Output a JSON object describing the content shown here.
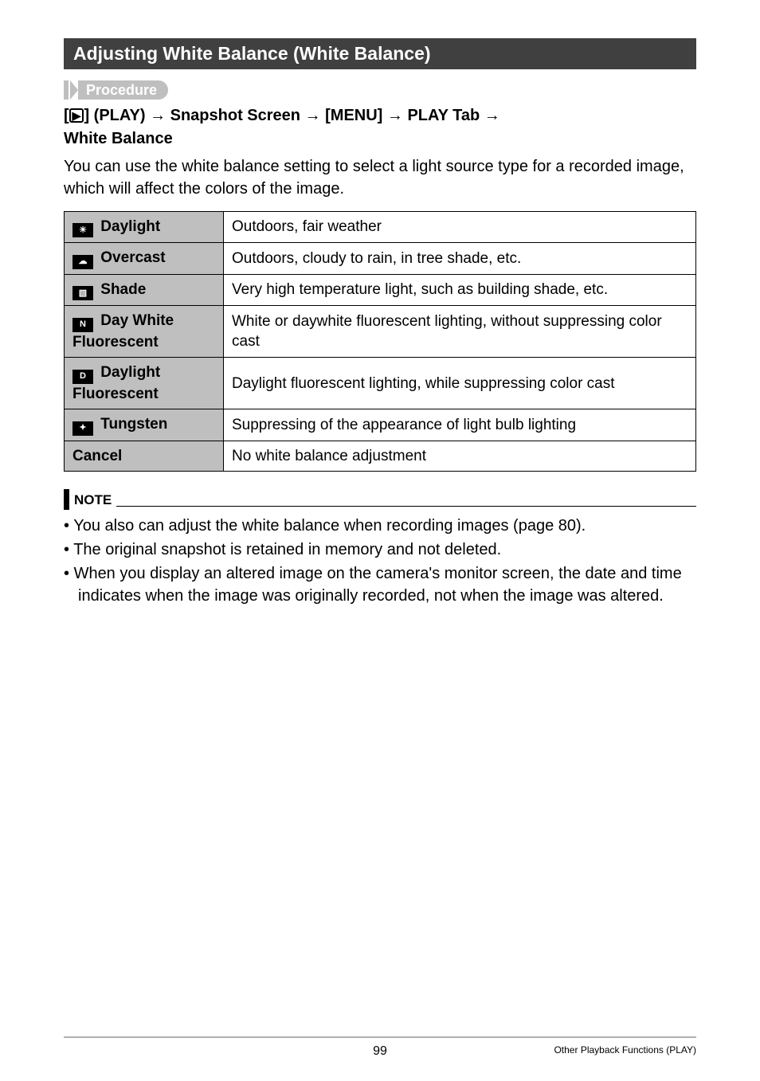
{
  "section_title": "Adjusting White Balance (White Balance)",
  "procedure_label": "Procedure",
  "breadcrumb": {
    "parts": [
      "[",
      "] (PLAY) ",
      " Snapshot Screen ",
      " [MENU] ",
      " PLAY Tab ",
      " "
    ],
    "last_line": "White Balance"
  },
  "intro_text": "You can use the white balance setting to select a light source type for a recorded image, which will affect the colors of the image.",
  "table": {
    "rows": [
      {
        "icon": "☀",
        "label": "Daylight",
        "desc": "Outdoors, fair weather"
      },
      {
        "icon": "☁",
        "label": "Overcast",
        "desc": "Outdoors, cloudy to rain, in tree shade, etc."
      },
      {
        "icon": "▧",
        "label": "Shade",
        "desc": "Very high temperature light, such as building shade, etc."
      },
      {
        "icon": "N",
        "label": "Day White Fluorescent",
        "desc": "White or daywhite fluorescent lighting, without suppressing color cast"
      },
      {
        "icon": "D",
        "label": "Daylight Fluorescent",
        "desc": "Daylight fluorescent lighting, while suppressing color cast"
      },
      {
        "icon": "✦",
        "label": "Tungsten",
        "desc": "Suppressing of the appearance of light bulb lighting"
      },
      {
        "icon": "",
        "label": "Cancel",
        "desc": "No white balance adjustment"
      }
    ]
  },
  "note_label": "NOTE",
  "notes": [
    "You also can adjust the white balance when recording images (page 80).",
    "The original snapshot is retained in memory and not deleted.",
    "When you display an altered image on the camera's monitor screen, the date and time indicates when the image was originally recorded, not when the image was altered."
  ],
  "footer": {
    "page_number": "99",
    "right_text": "Other Playback Functions (PLAY)"
  },
  "colors": {
    "header_bg": "#404040",
    "header_fg": "#ffffff",
    "proc_bg": "#bfbfbf",
    "th_bg": "#bfbfbf",
    "border": "#000000",
    "footer_rule": "#b0b0b0"
  }
}
